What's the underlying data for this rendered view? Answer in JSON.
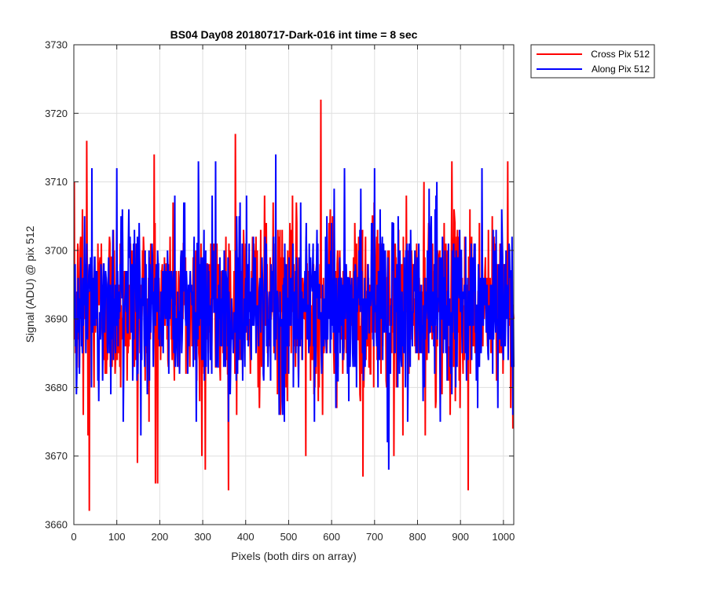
{
  "chart_data": {
    "type": "line",
    "title": "BS04 Day08 20180717-Dark-016 int time = 8 sec",
    "xlabel": "Pixels (both dirs on array)",
    "ylabel": "Signal (ADU) @ pix 512",
    "xlim": [
      0,
      1024
    ],
    "ylim": [
      3660,
      3730
    ],
    "xticks": [
      0,
      100,
      200,
      300,
      400,
      500,
      600,
      700,
      800,
      900,
      1000
    ],
    "yticks": [
      3660,
      3670,
      3680,
      3690,
      3700,
      3710,
      3720,
      3730
    ],
    "xtick_labels": [
      "0",
      "100",
      "200",
      "300",
      "400",
      "500",
      "600",
      "700",
      "800",
      "900",
      "1000"
    ],
    "ytick_labels": [
      "3660",
      "3670",
      "3680",
      "3690",
      "3700",
      "3710",
      "3720",
      "3730"
    ],
    "grid": true,
    "legend_position": "outside-top-right",
    "series": [
      {
        "name": "Cross Pix 512",
        "color": "#ff0000",
        "x_start": 1,
        "x_step": 1,
        "n_points": 1024,
        "mean": 3692,
        "std": 6.5,
        "features": [
          {
            "x": 20,
            "y": 3706
          },
          {
            "x": 22,
            "y": 3676
          },
          {
            "x": 30,
            "y": 3716
          },
          {
            "x": 33,
            "y": 3673
          },
          {
            "x": 36,
            "y": 3662
          },
          {
            "x": 148,
            "y": 3669
          },
          {
            "x": 187,
            "y": 3714
          },
          {
            "x": 190,
            "y": 3666
          },
          {
            "x": 298,
            "y": 3670
          },
          {
            "x": 306,
            "y": 3668
          },
          {
            "x": 376,
            "y": 3717
          },
          {
            "x": 540,
            "y": 3670
          },
          {
            "x": 575,
            "y": 3722
          },
          {
            "x": 673,
            "y": 3667
          },
          {
            "x": 745,
            "y": 3670
          },
          {
            "x": 818,
            "y": 3673
          },
          {
            "x": 880,
            "y": 3713
          },
          {
            "x": 918,
            "y": 3665
          },
          {
            "x": 1010,
            "y": 3713
          },
          {
            "x": 1017,
            "y": 3677
          }
        ]
      },
      {
        "name": "Along Pix 512",
        "color": "#0000ff",
        "x_start": 1,
        "x_step": 1,
        "n_points": 1024,
        "mean": 3692,
        "std": 6,
        "features": [
          {
            "x": 6,
            "y": 3679
          },
          {
            "x": 42,
            "y": 3712
          },
          {
            "x": 58,
            "y": 3678
          },
          {
            "x": 100,
            "y": 3712
          },
          {
            "x": 115,
            "y": 3675
          },
          {
            "x": 285,
            "y": 3675
          },
          {
            "x": 290,
            "y": 3713
          },
          {
            "x": 330,
            "y": 3713
          },
          {
            "x": 360,
            "y": 3675
          },
          {
            "x": 470,
            "y": 3714
          },
          {
            "x": 490,
            "y": 3675
          },
          {
            "x": 560,
            "y": 3675
          },
          {
            "x": 630,
            "y": 3712
          },
          {
            "x": 700,
            "y": 3712
          },
          {
            "x": 730,
            "y": 3672
          },
          {
            "x": 733,
            "y": 3668
          },
          {
            "x": 950,
            "y": 3712
          },
          {
            "x": 1022,
            "y": 3676
          }
        ]
      }
    ]
  }
}
